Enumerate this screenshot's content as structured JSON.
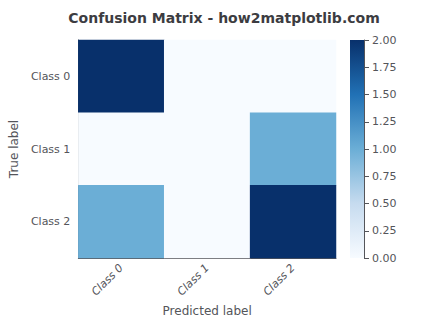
{
  "chart_data": {
    "type": "heatmap",
    "title": "Confusion Matrix - how2matplotlib.com",
    "xlabel": "Predicted label",
    "ylabel": "True label",
    "categories": [
      "Class 0",
      "Class 1",
      "Class 2"
    ],
    "values": [
      [
        2,
        0,
        0
      ],
      [
        0,
        0,
        1
      ],
      [
        1,
        0,
        2
      ]
    ],
    "colorbar": {
      "range": [
        0,
        2
      ],
      "ticks": [
        {
          "value": 0,
          "label": "0.00"
        },
        {
          "value": 0.25,
          "label": "0.25"
        },
        {
          "value": 0.5,
          "label": "0.50"
        },
        {
          "value": 0.75,
          "label": "0.75"
        },
        {
          "value": 1,
          "label": "1.00"
        },
        {
          "value": 1.25,
          "label": "1.25"
        },
        {
          "value": 1.5,
          "label": "1.50"
        },
        {
          "value": 1.75,
          "label": "1.75"
        },
        {
          "value": 2,
          "label": "2.00"
        }
      ],
      "colors": [
        "#f7fbff",
        "#c6dbef",
        "#6baed6",
        "#2171b5",
        "#08306b"
      ]
    }
  }
}
